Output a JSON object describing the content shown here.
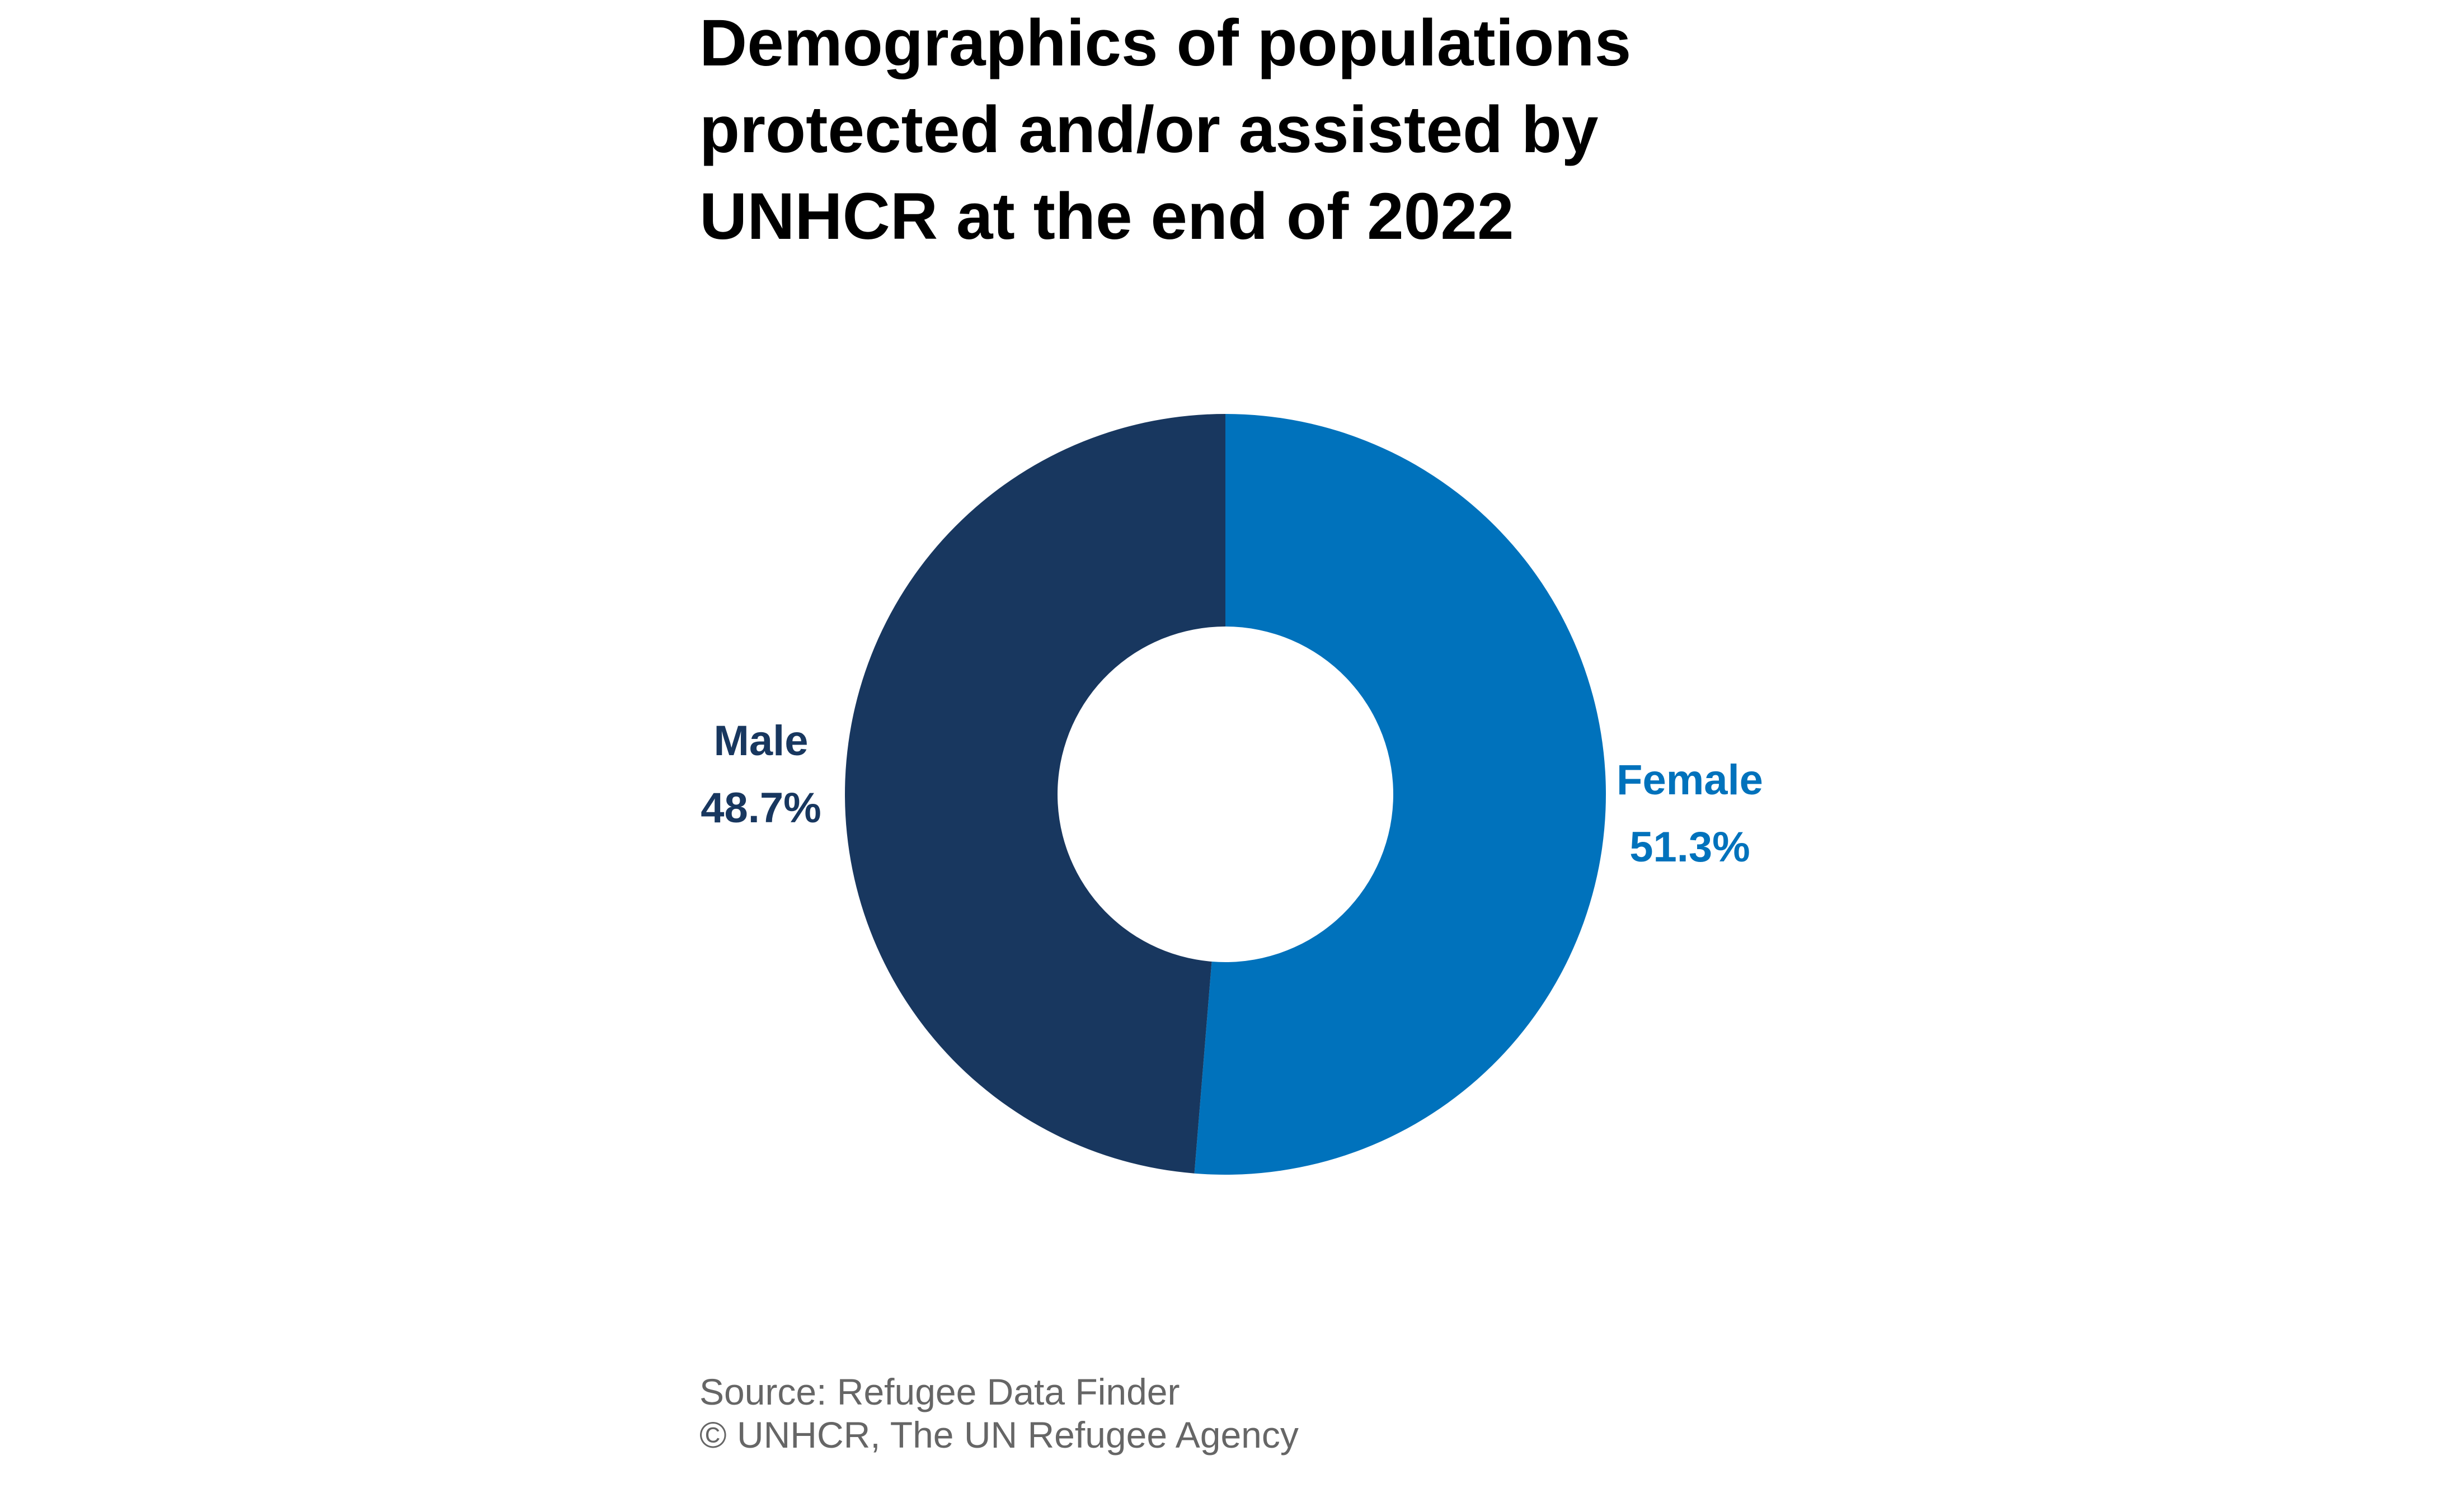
{
  "title_lines": [
    "Demographics of populations",
    "protected and/or assisted by",
    "UNHCR at the end of 2022"
  ],
  "chart_data": {
    "type": "pie",
    "style": "donut",
    "slices": [
      {
        "label": "Female",
        "value": 51.3,
        "value_label": "51.3%",
        "color": "#0072BC"
      },
      {
        "label": "Male",
        "value": 48.7,
        "value_label": "48.7%",
        "color": "#18375F"
      }
    ]
  },
  "footer": {
    "source": "Source: Refugee Data Finder",
    "copyright": "© UNHCR, The UN Refugee Agency"
  }
}
